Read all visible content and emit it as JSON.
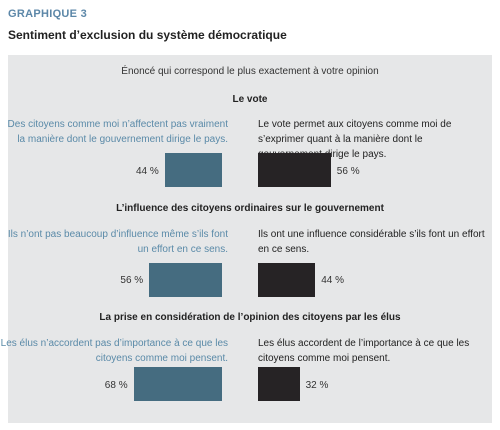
{
  "figure_label": "GRAPHIQUE 3",
  "figure_title": "Sentiment d’exclusion du système démocratique",
  "colors": {
    "left_bar": "#456c80",
    "right_bar": "#262325",
    "panel": "#e6e7e8"
  },
  "chart_data": {
    "type": "bar",
    "title": "Sentiment d’exclusion du système démocratique",
    "intro": "Énoncé qui correspond le plus exactement à votre opinion",
    "sections": [
      {
        "title": "Le vote",
        "left_statement": "Des citoyens comme moi n’affectent pas vraiment la manière dont le gouvernement dirige le pays.",
        "right_statement": "Le vote permet aux citoyens comme moi de s’exprimer quant à la manière dont le gouvernement dirige le pays.",
        "left_value": 44,
        "right_value": 56,
        "left_label": "44 %",
        "right_label": "56 %"
      },
      {
        "title": "L’influence des citoyens ordinaires sur le gouvernement",
        "left_statement": "Ils n’ont pas beaucoup d’influence même s’ils font un effort en ce sens.",
        "right_statement": "Ils ont une influence considérable s’ils font un effort en ce sens.",
        "left_value": 56,
        "right_value": 44,
        "left_label": "56 %",
        "right_label": "44 %"
      },
      {
        "title": "La prise en considération de l’opinion des citoyens par les élus",
        "left_statement": "Les élus n’accordent pas d’importance à ce que les citoyens comme moi pensent.",
        "right_statement": "Les élus accordent de l’importance à ce que les citoyens comme moi pensent.",
        "left_value": 68,
        "right_value": 32,
        "left_label": "68 %",
        "right_label": "32 %"
      }
    ]
  }
}
